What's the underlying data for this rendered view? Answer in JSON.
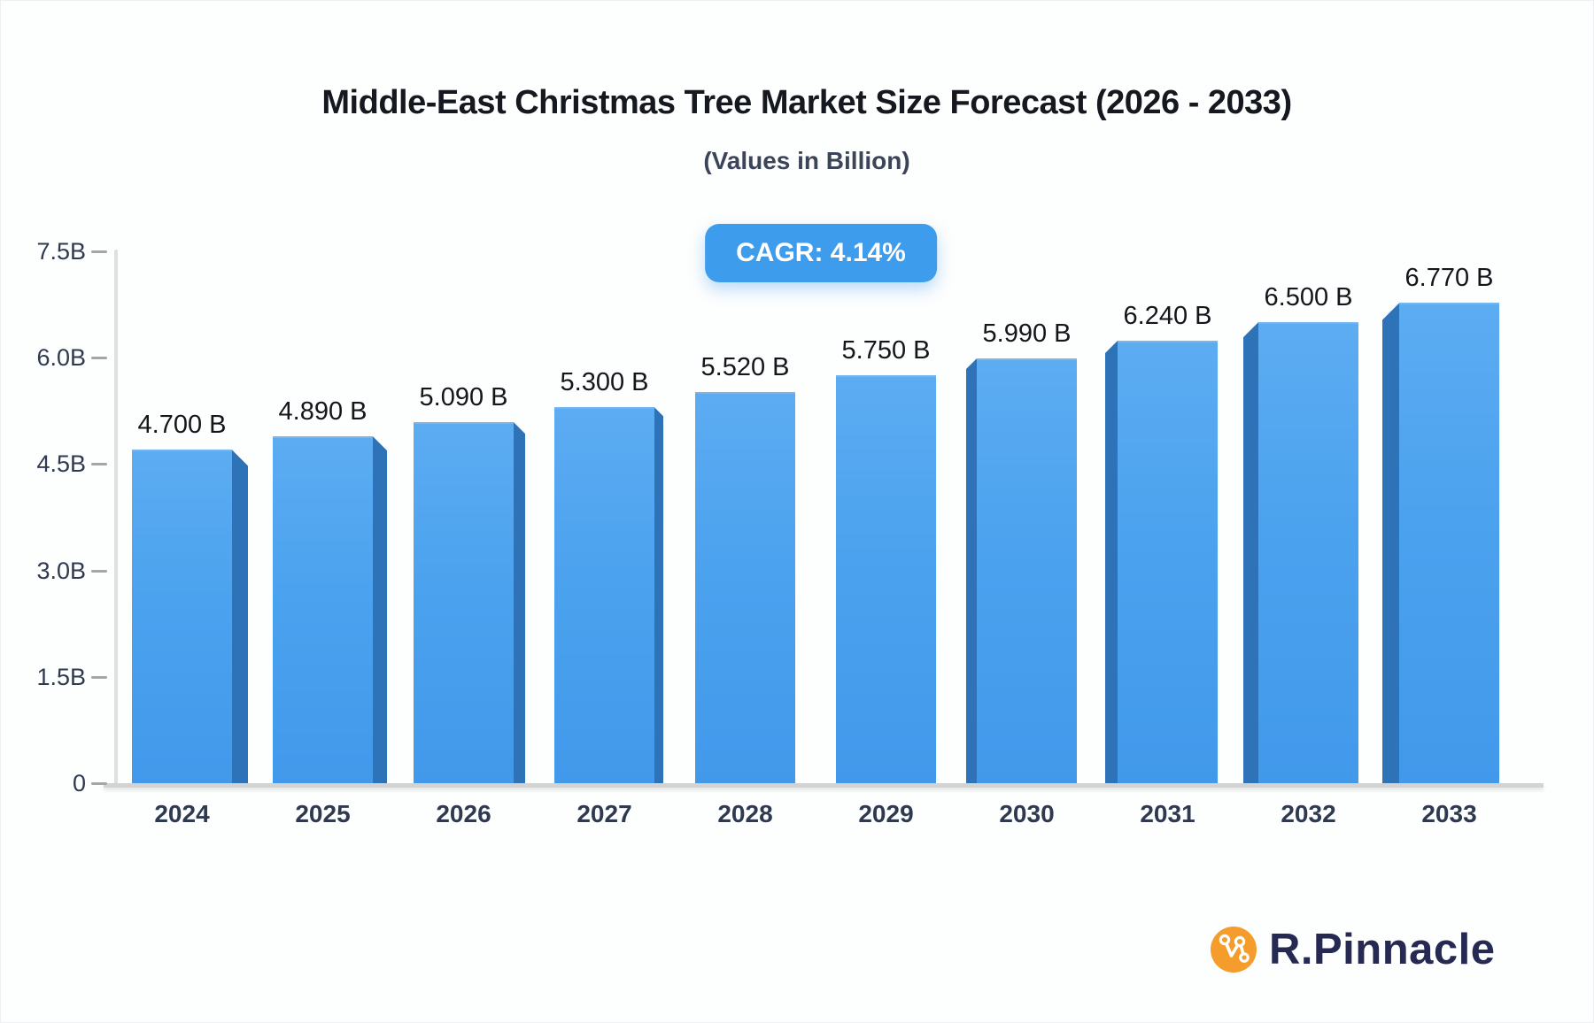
{
  "header": {
    "title": "Middle-East Christmas Tree Market Size Forecast (2026 - 2033)",
    "subtitle": "(Values in Billion)",
    "cagr_label": "CAGR: 4.14%"
  },
  "chart_data": {
    "type": "bar",
    "title": "Middle-East Christmas Tree Market Size Forecast (2026 - 2033)",
    "subtitle": "(Values in Billion)",
    "cagr": "4.14%",
    "unit": "Billion",
    "categories": [
      "2024",
      "2025",
      "2026",
      "2027",
      "2028",
      "2029",
      "2030",
      "2031",
      "2032",
      "2033"
    ],
    "values": [
      4.7,
      4.89,
      5.09,
      5.3,
      5.52,
      5.75,
      5.99,
      6.24,
      6.5,
      6.77
    ],
    "value_labels": [
      "4.700 B",
      "4.890 B",
      "5.090 B",
      "5.300 B",
      "5.520 B",
      "5.750 B",
      "5.990 B",
      "6.240 B",
      "6.500 B",
      "6.770 B"
    ],
    "xlabel": "",
    "ylabel": "",
    "ylim": [
      0,
      7.5
    ],
    "grid": false,
    "legend": "none",
    "y_ticks": [
      {
        "label": "7.5B",
        "value": 7.5
      },
      {
        "label": "6.0B",
        "value": 6.0
      },
      {
        "label": "4.5B",
        "value": 4.5
      },
      {
        "label": "3.0B",
        "value": 3.0
      },
      {
        "label": "1.5B",
        "value": 1.5
      },
      {
        "label": "0",
        "value": 0
      }
    ],
    "colors": {
      "bar_front": "#4BA2EE",
      "bar_side": "#2E73B8",
      "badge_bg": "#3D9CEC",
      "badge_text": "#FFFFFF",
      "axis_text": "#2F3A50",
      "value_text": "#13161B",
      "baseline": "#D3D3D3",
      "title_text": "#15181E",
      "subtitle_text": "#3C4558",
      "logo_orange": "#F59D2C",
      "logo_navy": "#262A52"
    }
  },
  "footer": {
    "brand": "R.Pinnacle"
  }
}
